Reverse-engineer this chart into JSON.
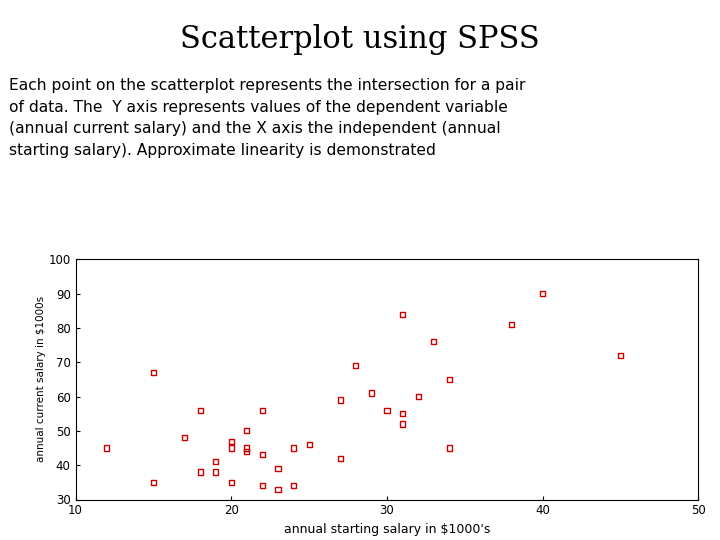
{
  "title": "Scatterplot using SPSS",
  "subtitle_lines": [
    "Each point on the scatterplot represents the intersection for a pair",
    "of data. The  Y axis represents values of the dependent variable",
    "(annual current salary) and the X axis the independent (annual",
    "starting salary). Approximate linearity is demonstrated"
  ],
  "xlabel": "annual starting salary in $1000's",
  "ylabel": "annual current salary in $1000s",
  "xlim": [
    10,
    50
  ],
  "ylim": [
    30,
    100
  ],
  "xticks": [
    10,
    20,
    30,
    40,
    50
  ],
  "yticks": [
    30,
    40,
    50,
    60,
    70,
    80,
    90,
    100
  ],
  "point_color": "#cc0000",
  "background_color": "#ffffff",
  "x_data": [
    12,
    15,
    15,
    17,
    18,
    18,
    19,
    19,
    20,
    20,
    20,
    21,
    21,
    21,
    22,
    22,
    22,
    23,
    23,
    24,
    24,
    25,
    27,
    27,
    28,
    29,
    30,
    31,
    31,
    31,
    32,
    33,
    34,
    34,
    38,
    40,
    45
  ],
  "y_data": [
    45,
    67,
    35,
    48,
    56,
    38,
    41,
    38,
    47,
    45,
    35,
    45,
    44,
    50,
    56,
    43,
    34,
    39,
    33,
    34,
    45,
    46,
    42,
    59,
    69,
    61,
    56,
    84,
    55,
    52,
    60,
    76,
    45,
    65,
    81,
    90,
    72
  ]
}
